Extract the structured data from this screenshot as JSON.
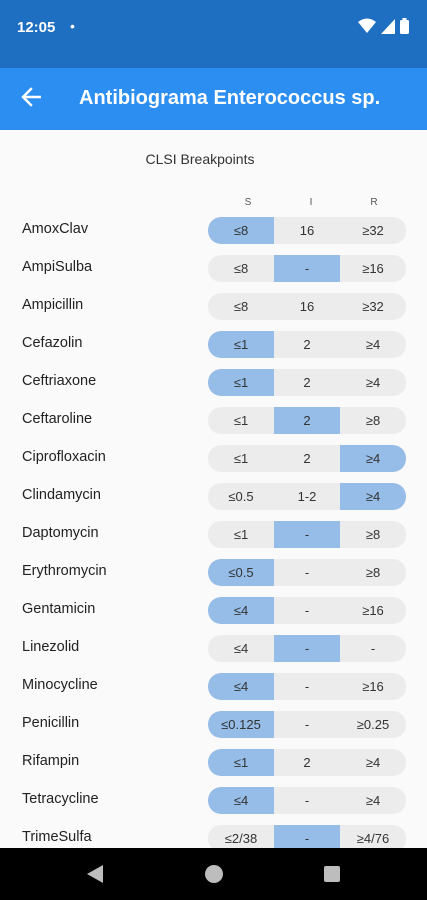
{
  "status": {
    "time": "12:05",
    "dot": "•"
  },
  "app_bar": {
    "title": "Antibiograma Enterococcus sp."
  },
  "table": {
    "subtitle": "CLSI Breakpoints",
    "columns": [
      "S",
      "I",
      "R"
    ],
    "highlight_color": "#95bde8",
    "rows": [
      {
        "drug": "AmoxClav",
        "values": [
          "≤8",
          "16",
          "≥32"
        ],
        "highlight": 0
      },
      {
        "drug": "AmpiSulba",
        "values": [
          "≤8",
          "-",
          "≥16"
        ],
        "highlight": 1
      },
      {
        "drug": "Ampicillin",
        "values": [
          "≤8",
          "16",
          "≥32"
        ],
        "highlight": -1
      },
      {
        "drug": "Cefazolin",
        "values": [
          "≤1",
          "2",
          "≥4"
        ],
        "highlight": 0
      },
      {
        "drug": "Ceftriaxone",
        "values": [
          "≤1",
          "2",
          "≥4"
        ],
        "highlight": 0
      },
      {
        "drug": "Ceftaroline",
        "values": [
          "≤1",
          "2",
          "≥8"
        ],
        "highlight": 1
      },
      {
        "drug": "Ciprofloxacin",
        "values": [
          "≤1",
          "2",
          "≥4"
        ],
        "highlight": 2
      },
      {
        "drug": "Clindamycin",
        "values": [
          "≤0.5",
          "1-2",
          "≥4"
        ],
        "highlight": 2
      },
      {
        "drug": "Daptomycin",
        "values": [
          "≤1",
          "-",
          "≥8"
        ],
        "highlight": 1
      },
      {
        "drug": "Erythromycin",
        "values": [
          "≤0.5",
          "-",
          "≥8"
        ],
        "highlight": 0
      },
      {
        "drug": "Gentamicin",
        "values": [
          "≤4",
          "-",
          "≥16"
        ],
        "highlight": 0
      },
      {
        "drug": "Linezolid",
        "values": [
          "≤4",
          "-",
          "-"
        ],
        "highlight": 1
      },
      {
        "drug": "Minocycline",
        "values": [
          "≤4",
          "-",
          "≥16"
        ],
        "highlight": 0
      },
      {
        "drug": "Penicillin",
        "values": [
          "≤0.125",
          "-",
          "≥0.25"
        ],
        "highlight": 0
      },
      {
        "drug": "Rifampin",
        "values": [
          "≤1",
          "2",
          "≥4"
        ],
        "highlight": 0
      },
      {
        "drug": "Tetracycline",
        "values": [
          "≤4",
          "-",
          "≥4"
        ],
        "highlight": 0
      },
      {
        "drug": "TrimeSulfa",
        "values": [
          "≤2/38",
          "-",
          "≥4/76"
        ],
        "highlight": 1
      }
    ]
  },
  "icons": {
    "back": "arrow-back-icon",
    "wifi": "wifi-icon",
    "signal": "signal-icon",
    "battery": "battery-icon",
    "nav_back": "nav-back-icon",
    "nav_home": "nav-home-icon",
    "nav_recent": "nav-recent-icon"
  }
}
